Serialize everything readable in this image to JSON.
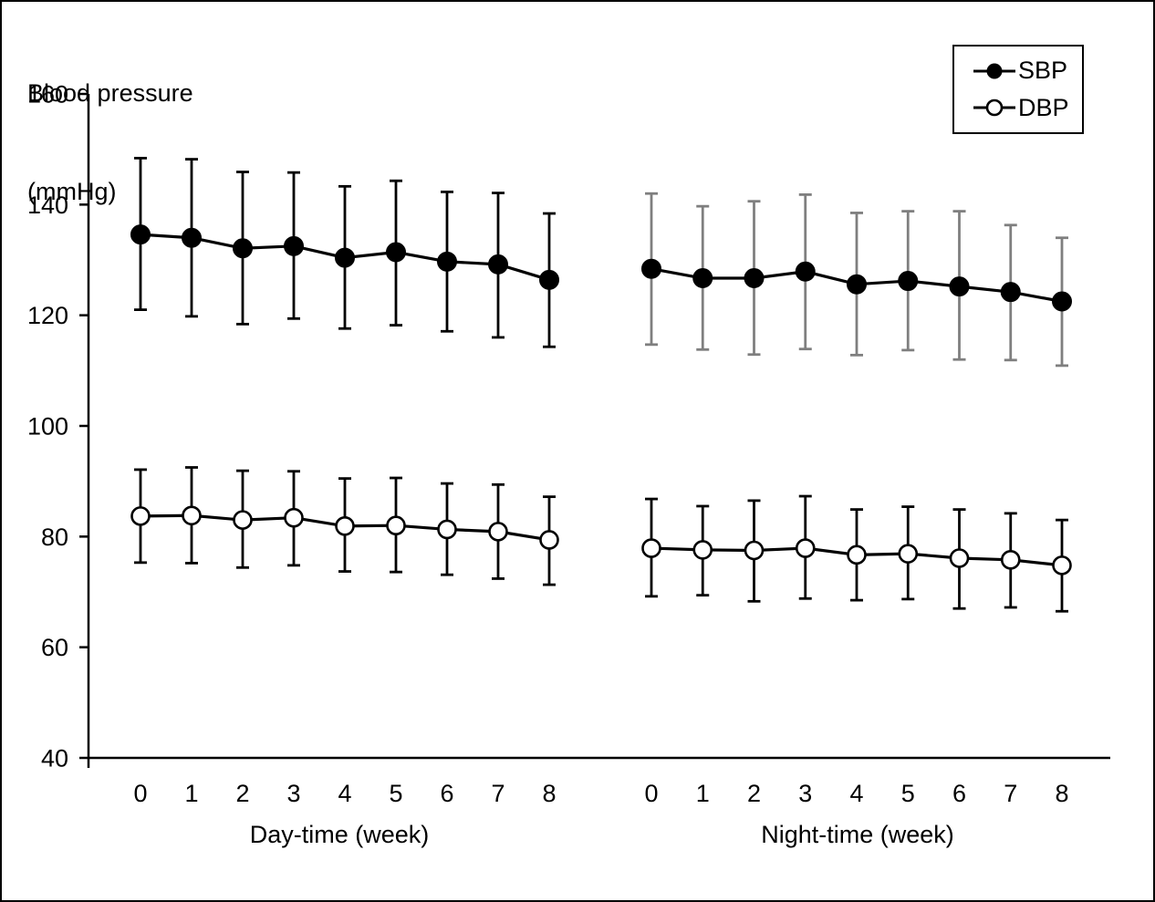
{
  "figure": {
    "title_line1": "Blood pressure",
    "title_line2": "(mmHg)"
  },
  "legend": {
    "items": [
      {
        "label": "SBP",
        "marker": "filled-circle"
      },
      {
        "label": "DBP",
        "marker": "open-circle"
      }
    ],
    "position": "top-right"
  },
  "colors": {
    "foreground": "#000000",
    "background": "#ffffff",
    "night_sbp_error_bars": "#7f7f7f"
  },
  "chart_data": {
    "type": "line",
    "title": "Blood pressure (mmHg)",
    "ylabel": "Blood pressure (mmHg)",
    "ylim": [
      40,
      160
    ],
    "y_ticks": [
      160,
      140,
      120,
      100,
      80,
      60,
      40
    ],
    "grid": false,
    "error_bars": true,
    "legend": [
      "SBP",
      "DBP"
    ],
    "groups": [
      {
        "label": "Day-time (week)",
        "x": [
          0,
          1,
          2,
          3,
          4,
          5,
          6,
          7,
          8
        ],
        "series": [
          {
            "name": "SBP",
            "marker": "filled-circle",
            "line_color": "#000000",
            "error_bar_color": "#000000",
            "mean": [
              134.6,
              134.0,
              132.1,
              132.5,
              130.4,
              131.4,
              129.7,
              129.2,
              126.4
            ],
            "upper": [
              148.4,
              148.2,
              145.9,
              145.8,
              143.3,
              144.3,
              142.3,
              142.1,
              138.4
            ],
            "lower": [
              121.0,
              119.8,
              118.4,
              119.4,
              117.6,
              118.2,
              117.1,
              116.0,
              114.3
            ]
          },
          {
            "name": "DBP",
            "marker": "open-circle",
            "line_color": "#000000",
            "error_bar_color": "#000000",
            "mean": [
              83.7,
              83.8,
              83.0,
              83.4,
              81.9,
              82.0,
              81.3,
              80.9,
              79.4
            ],
            "upper": [
              92.1,
              92.5,
              91.9,
              91.8,
              90.5,
              90.6,
              89.6,
              89.4,
              87.2
            ],
            "lower": [
              75.3,
              75.2,
              74.4,
              74.8,
              73.7,
              73.6,
              73.1,
              72.4,
              71.3
            ]
          }
        ]
      },
      {
        "label": "Night-time (week)",
        "x": [
          0,
          1,
          2,
          3,
          4,
          5,
          6,
          7,
          8
        ],
        "series": [
          {
            "name": "SBP",
            "marker": "filled-circle",
            "line_color": "#000000",
            "error_bar_color": "#7f7f7f",
            "mean": [
              128.4,
              126.7,
              126.7,
              127.9,
              125.6,
              126.2,
              125.2,
              124.2,
              122.5
            ],
            "upper": [
              142.0,
              139.7,
              140.6,
              141.8,
              138.5,
              138.8,
              138.8,
              136.3,
              134.0
            ],
            "lower": [
              114.7,
              113.8,
              112.9,
              113.9,
              112.8,
              113.7,
              112.0,
              111.9,
              110.9
            ]
          },
          {
            "name": "DBP",
            "marker": "open-circle",
            "line_color": "#000000",
            "error_bar_color": "#000000",
            "mean": [
              77.9,
              77.6,
              77.5,
              77.9,
              76.7,
              76.9,
              76.1,
              75.8,
              74.8
            ],
            "upper": [
              86.8,
              85.5,
              86.5,
              87.3,
              84.9,
              85.4,
              84.9,
              84.2,
              83.0
            ],
            "lower": [
              69.2,
              69.4,
              68.3,
              68.8,
              68.5,
              68.7,
              67.0,
              67.2,
              66.5
            ]
          }
        ]
      }
    ]
  }
}
